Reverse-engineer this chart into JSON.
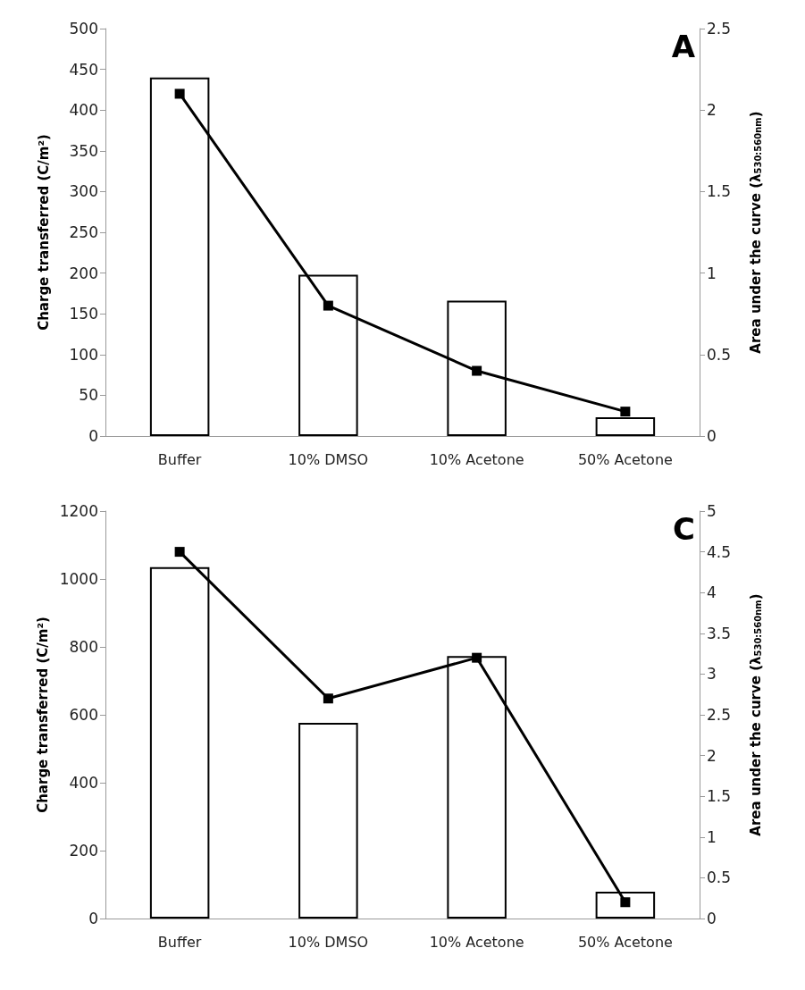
{
  "chart_data": [
    {
      "type": "bar",
      "title": "A",
      "categories": [
        "Buffer",
        "10% DMSO",
        "10% Acetone",
        "50% Acetone"
      ],
      "ylabel": "Charge transferred (C/m²)",
      "y2label": "Area under the curve (λ$_{530:560nm}$)",
      "ylim": [
        0,
        500
      ],
      "yticks": [
        0,
        50,
        100,
        150,
        200,
        250,
        300,
        350,
        400,
        450,
        500
      ],
      "y2lim": [
        0,
        2.5
      ],
      "y2ticks": [
        0,
        0.5,
        1,
        1.5,
        2,
        2.5
      ],
      "series": [
        {
          "type": "bar",
          "color": "#ffffff",
          "values": [
            440,
            198,
            166,
            23
          ]
        },
        {
          "type": "line",
          "axis": "y2",
          "color": "#000000",
          "marker": "square",
          "values": [
            2.1,
            0.8,
            0.4,
            0.15
          ]
        }
      ]
    },
    {
      "type": "bar",
      "title": "C",
      "categories": [
        "Buffer",
        "10% DMSO",
        "10% Acetone",
        "50% Acetone"
      ],
      "ylabel": "Charge transferred (C/m²)",
      "y2label": "Area under the curve (λ$_{530:560nm}$)",
      "ylim": [
        0,
        1200
      ],
      "yticks": [
        0,
        200,
        400,
        600,
        800,
        1000,
        1200
      ],
      "y2lim": [
        0,
        5
      ],
      "y2ticks": [
        0,
        0.5,
        1,
        1.5,
        2,
        2.5,
        3,
        3.5,
        4,
        4.5,
        5
      ],
      "series": [
        {
          "type": "bar",
          "color": "#ffffff",
          "values": [
            1035,
            576,
            773,
            79
          ]
        },
        {
          "type": "line",
          "axis": "y2",
          "color": "#000000",
          "marker": "square",
          "values": [
            4.5,
            2.7,
            3.2,
            0.2
          ]
        }
      ]
    }
  ]
}
